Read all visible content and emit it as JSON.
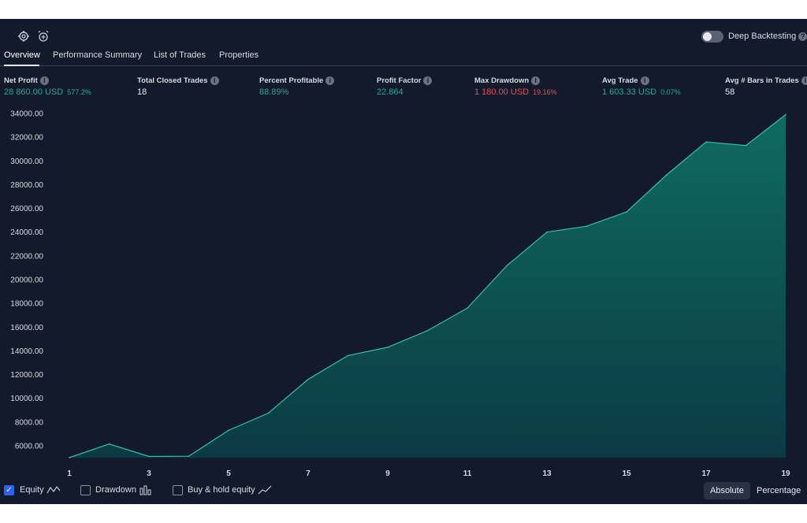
{
  "toolbar": {
    "settings_icon": "gear-icon",
    "alarm_icon": "alarm-clock-add-icon",
    "deep_backtesting_label": "Deep Backtesting",
    "deep_backtesting_on": false,
    "help_glyph": "?"
  },
  "tabs": [
    {
      "label": "Overview",
      "active": true
    },
    {
      "label": "Performance Summary",
      "active": false
    },
    {
      "label": "List of Trades",
      "active": false
    },
    {
      "label": "Properties",
      "active": false
    }
  ],
  "metrics": {
    "info_glyph": "i",
    "net_profit": {
      "label": "Net Profit",
      "value": "28 860.00 USD",
      "pct": "577.2%"
    },
    "total_closed_trades": {
      "label": "Total Closed Trades",
      "value": "18"
    },
    "percent_profitable": {
      "label": "Percent Profitable",
      "value": "88.89%"
    },
    "profit_factor": {
      "label": "Profit Factor",
      "value": "22.864"
    },
    "max_drawdown": {
      "label": "Max Drawdown",
      "value": "1 180.00 USD",
      "pct": "19.16%"
    },
    "avg_trade": {
      "label": "Avg Trade",
      "value": "1 603.33 USD",
      "pct": "0.07%"
    },
    "avg_bars": {
      "label": "Avg # Bars in Trades",
      "value": "58"
    }
  },
  "colors": {
    "background": "#131a2c",
    "positive": "#22ab94",
    "negative": "#e0525e",
    "area_line": "#2fc2aa",
    "area_fill_top": "#0e6b62",
    "area_fill_bottom": "#0c3a44",
    "accent": "#2962ff"
  },
  "chart_data": {
    "type": "area",
    "x": [
      1,
      2,
      3,
      4,
      5,
      6,
      7,
      8,
      9,
      10,
      11,
      12,
      13,
      14,
      15,
      16,
      17,
      18,
      19
    ],
    "series": [
      {
        "values": [
          5000,
          6150,
          5100,
          5120,
          7300,
          8750,
          11600,
          13600,
          14300,
          15700,
          17600,
          21200,
          24000,
          24500,
          25700,
          28800,
          31600,
          31300,
          33900
        ]
      }
    ],
    "xticks": [
      "1",
      "3",
      "5",
      "7",
      "9",
      "11",
      "13",
      "15",
      "17",
      "19"
    ],
    "xtick_values": [
      1,
      3,
      5,
      7,
      9,
      11,
      13,
      15,
      17,
      19
    ],
    "yticks": [
      "6000.00",
      "8000.00",
      "10000.00",
      "12000.00",
      "14000.00",
      "16000.00",
      "18000.00",
      "20000.00",
      "22000.00",
      "24000.00",
      "26000.00",
      "28000.00",
      "30000.00",
      "32000.00",
      "34000.00"
    ],
    "ytick_values": [
      6000,
      8000,
      10000,
      12000,
      14000,
      16000,
      18000,
      20000,
      22000,
      24000,
      26000,
      28000,
      30000,
      32000,
      34000
    ],
    "ylim": [
      5000,
      34400
    ],
    "xlim": [
      1,
      19
    ],
    "grid": false
  },
  "footer": {
    "equity": {
      "label": "Equity",
      "checked": true,
      "icon": "equity-line-icon"
    },
    "drawdown": {
      "label": "Drawdown",
      "checked": false,
      "icon": "drawdown-bars-icon"
    },
    "buy_hold": {
      "label": "Buy & hold equity",
      "checked": false,
      "icon": "buy-hold-line-icon"
    },
    "absolute_label": "Absolute",
    "percentage_label": "Percentage",
    "check_glyph": "✓"
  }
}
